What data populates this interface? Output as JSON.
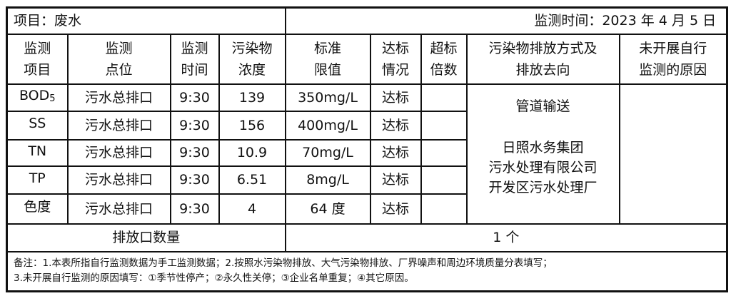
{
  "title_left": "项目：废水",
  "title_right": "监测时间：2023 年 4 月 5 日",
  "columns": [
    [
      "监测",
      "项目"
    ],
    [
      "监测",
      "点位"
    ],
    [
      "监测",
      "时间"
    ],
    [
      "污染物",
      "浓度"
    ],
    [
      "标准",
      "限值"
    ],
    [
      "达标",
      "情况"
    ],
    [
      "超标",
      "倍数"
    ],
    [
      "污染物排放方式及",
      "排放去向"
    ],
    [
      "未开展自行",
      "监测的原因"
    ]
  ],
  "rows": [
    {
      "item": "BOD",
      "item_sub": "5",
      "point": "污水总排口",
      "time": "9:30",
      "conc": "139",
      "limit": "350mg/L",
      "status": "达标",
      "exceed": ""
    },
    {
      "item": "SS",
      "item_sub": "",
      "point": "污水总排口",
      "time": "9:30",
      "conc": "156",
      "limit": "400mg/L",
      "status": "达标",
      "exceed": ""
    },
    {
      "item": "TN",
      "item_sub": "",
      "point": "污水总排口",
      "time": "9:30",
      "conc": "10.9",
      "limit": "70mg/L",
      "status": "达标",
      "exceed": ""
    },
    {
      "item": "TP",
      "item_sub": "",
      "point": "污水总排口",
      "time": "9:30",
      "conc": "6.51",
      "limit": "8mg/L",
      "status": "达标",
      "exceed": ""
    },
    {
      "item": "色度",
      "item_sub": "",
      "point": "污水总排口",
      "time": "9:30",
      "conc": "4",
      "limit": "64 度",
      "status": "达标",
      "exceed": ""
    }
  ],
  "discharge": {
    "method": "管道输送",
    "destination": [
      "日照水务集团",
      "污水处理有限公司",
      "开发区污水处理厂"
    ]
  },
  "not_monitored_reason": "",
  "outlet_count_label": "排放口数量",
  "outlet_count_value": "1 个",
  "notes": [
    "备注：1.本表所指自行监测数据为手工监测数据；2.按照水污染物排放、大气污染物排放、厂界噪声和周边环境质量分表填写；",
    "3.未开展自行监测的原因填写：①季节性停产；②永久性关停；③企业名单重复；④其它原因。"
  ]
}
